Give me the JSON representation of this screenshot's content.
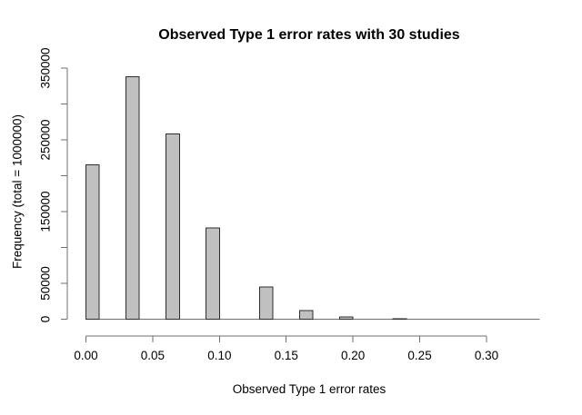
{
  "chart_data": {
    "type": "bar",
    "subtype": "histogram",
    "title": "Observed Type 1 error rates with 30 studies",
    "xlabel": "Observed Type 1 error rates",
    "ylabel": "Frequency (total = 1000000)",
    "bin_width": 0.01,
    "bins": [
      {
        "left": 0.0,
        "freq": 215000
      },
      {
        "left": 0.03,
        "freq": 338000
      },
      {
        "left": 0.06,
        "freq": 258000
      },
      {
        "left": 0.09,
        "freq": 127000
      },
      {
        "left": 0.13,
        "freq": 45000
      },
      {
        "left": 0.16,
        "freq": 12000
      },
      {
        "left": 0.19,
        "freq": 3000
      },
      {
        "left": 0.23,
        "freq": 600
      }
    ],
    "x_ticks": [
      {
        "v": 0.0,
        "label": "0.00"
      },
      {
        "v": 0.05,
        "label": "0.05"
      },
      {
        "v": 0.1,
        "label": "0.10"
      },
      {
        "v": 0.15,
        "label": "0.15"
      },
      {
        "v": 0.2,
        "label": "0.20"
      },
      {
        "v": 0.25,
        "label": "0.25"
      },
      {
        "v": 0.3,
        "label": "0.30"
      }
    ],
    "y_ticks": [
      {
        "v": 0,
        "label": "0"
      },
      {
        "v": 50000,
        "label": "50000"
      },
      {
        "v": 100000,
        "label": ""
      },
      {
        "v": 150000,
        "label": "150000"
      },
      {
        "v": 200000,
        "label": ""
      },
      {
        "v": 250000,
        "label": "250000"
      },
      {
        "v": 300000,
        "label": ""
      },
      {
        "v": 350000,
        "label": "350000"
      }
    ],
    "xlim": [
      0,
      0.34
    ],
    "ylim": [
      0,
      350000
    ],
    "baseline_extent": [
      0,
      0.34
    ],
    "grid": false,
    "legend": false,
    "colors": {
      "bar_fill": "#c0c0c0",
      "bar_border": "#2e2e2e",
      "axis_line": "#6f6f6f",
      "text": "#000000",
      "background": "#ffffff"
    }
  }
}
